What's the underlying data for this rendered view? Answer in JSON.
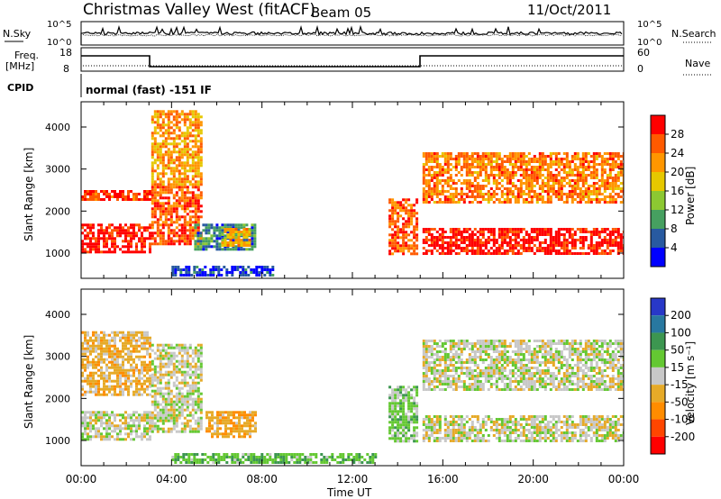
{
  "header": {
    "title": "Christmas Valley West (fitACF)",
    "beam": "Beam 05",
    "date": "11/Oct/2011"
  },
  "aux_panels": {
    "nsky_label": "N.Sky",
    "nsky_ticks": [
      "10^5",
      "10^0"
    ],
    "nsearch_label": "N.Search",
    "nsearch_ticks": [
      "10^5",
      "10^0"
    ],
    "freq_label_1": "Freq.",
    "freq_label_2": "[MHz]",
    "freq_ticks": [
      "18",
      "8"
    ],
    "nave_label": "Nave",
    "nave_ticks": [
      "60",
      "0"
    ],
    "cpid_label": "CPID",
    "cpid_text": "normal (fast) -151 IF"
  },
  "colorbars": {
    "power": {
      "label": "Power [dB]",
      "ticks": [
        "28",
        "24",
        "20",
        "16",
        "12",
        "8",
        "4"
      ],
      "colors": [
        "#ff0000",
        "#ff5a00",
        "#ff9600",
        "#e6c800",
        "#8cc832",
        "#46a060",
        "#285aa0",
        "#0000ff"
      ]
    },
    "velocity": {
      "label": "Velocity [m s⁻¹]",
      "ticks": [
        "200",
        "100",
        "50",
        "15",
        "-15",
        "-50",
        "-100",
        "-200"
      ],
      "colors": [
        "#2838c8",
        "#2878a0",
        "#3c9650",
        "#64c832",
        "#c8c8c8",
        "#e6aa28",
        "#ff8c00",
        "#ff4600",
        "#ff0000"
      ]
    }
  },
  "axes": {
    "ylabel": "Slant Range [km]",
    "yticks": [
      "4000",
      "3000",
      "2000",
      "1000"
    ],
    "xlabel": "Time UT",
    "xticks": [
      "00:00",
      "04:00",
      "08:00",
      "12:00",
      "16:00",
      "20:00",
      "00:00"
    ]
  },
  "chart_data": {
    "type": "heatmap",
    "x_range_hours": [
      0,
      24
    ],
    "y_range_km": [
      400,
      4600
    ],
    "panels": [
      {
        "name": "Power",
        "units": "dB",
        "color_scale": [
          0,
          32
        ],
        "echo_regions": [
          {
            "t": [
              0,
              3
            ],
            "range_km": [
              1000,
              1700
            ],
            "value": 30
          },
          {
            "t": [
              0,
              3
            ],
            "range_km": [
              2300,
              2500
            ],
            "value": 28
          },
          {
            "t": [
              3.1,
              5.3
            ],
            "range_km": [
              1200,
              2600
            ],
            "value": 26
          },
          {
            "t": [
              3.1,
              5.3
            ],
            "range_km": [
              2600,
              4400
            ],
            "value": 22
          },
          {
            "t": [
              5,
              7.7
            ],
            "range_km": [
              1100,
              1700
            ],
            "value": 8
          },
          {
            "t": [
              6.2,
              7.5
            ],
            "range_km": [
              1200,
              1600
            ],
            "value": 20
          },
          {
            "t": [
              4,
              8.5
            ],
            "range_km": [
              500,
              700
            ],
            "value": 4
          },
          {
            "t": [
              13.6,
              14.9
            ],
            "range_km": [
              1000,
              2300
            ],
            "value": 26
          },
          {
            "t": [
              15.1,
              24
            ],
            "range_km": [
              1000,
              1600
            ],
            "value": 30
          },
          {
            "t": [
              15.1,
              24
            ],
            "range_km": [
              2200,
              3400
            ],
            "value": 24
          }
        ]
      },
      {
        "name": "Velocity",
        "units": "m s-1",
        "color_scale": [
          -200,
          200
        ],
        "echo_regions": [
          {
            "t": [
              0,
              3
            ],
            "range_km": [
              1000,
              1700
            ],
            "value": 0
          },
          {
            "t": [
              0,
              3
            ],
            "range_km": [
              2100,
              3600
            ],
            "value": -30
          },
          {
            "t": [
              3.1,
              5.3
            ],
            "range_km": [
              1200,
              3300
            ],
            "value": 0
          },
          {
            "t": [
              5.5,
              7.7
            ],
            "range_km": [
              1100,
              1700
            ],
            "value": -40
          },
          {
            "t": [
              4,
              13
            ],
            "range_km": [
              500,
              700
            ],
            "value": 40
          },
          {
            "t": [
              13.6,
              14.9
            ],
            "range_km": [
              1000,
              2300
            ],
            "value": 30
          },
          {
            "t": [
              15.1,
              24
            ],
            "range_km": [
              1000,
              1600
            ],
            "value": 0
          },
          {
            "t": [
              15.1,
              24
            ],
            "range_km": [
              2200,
              3400
            ],
            "value": 0
          }
        ]
      }
    ]
  }
}
